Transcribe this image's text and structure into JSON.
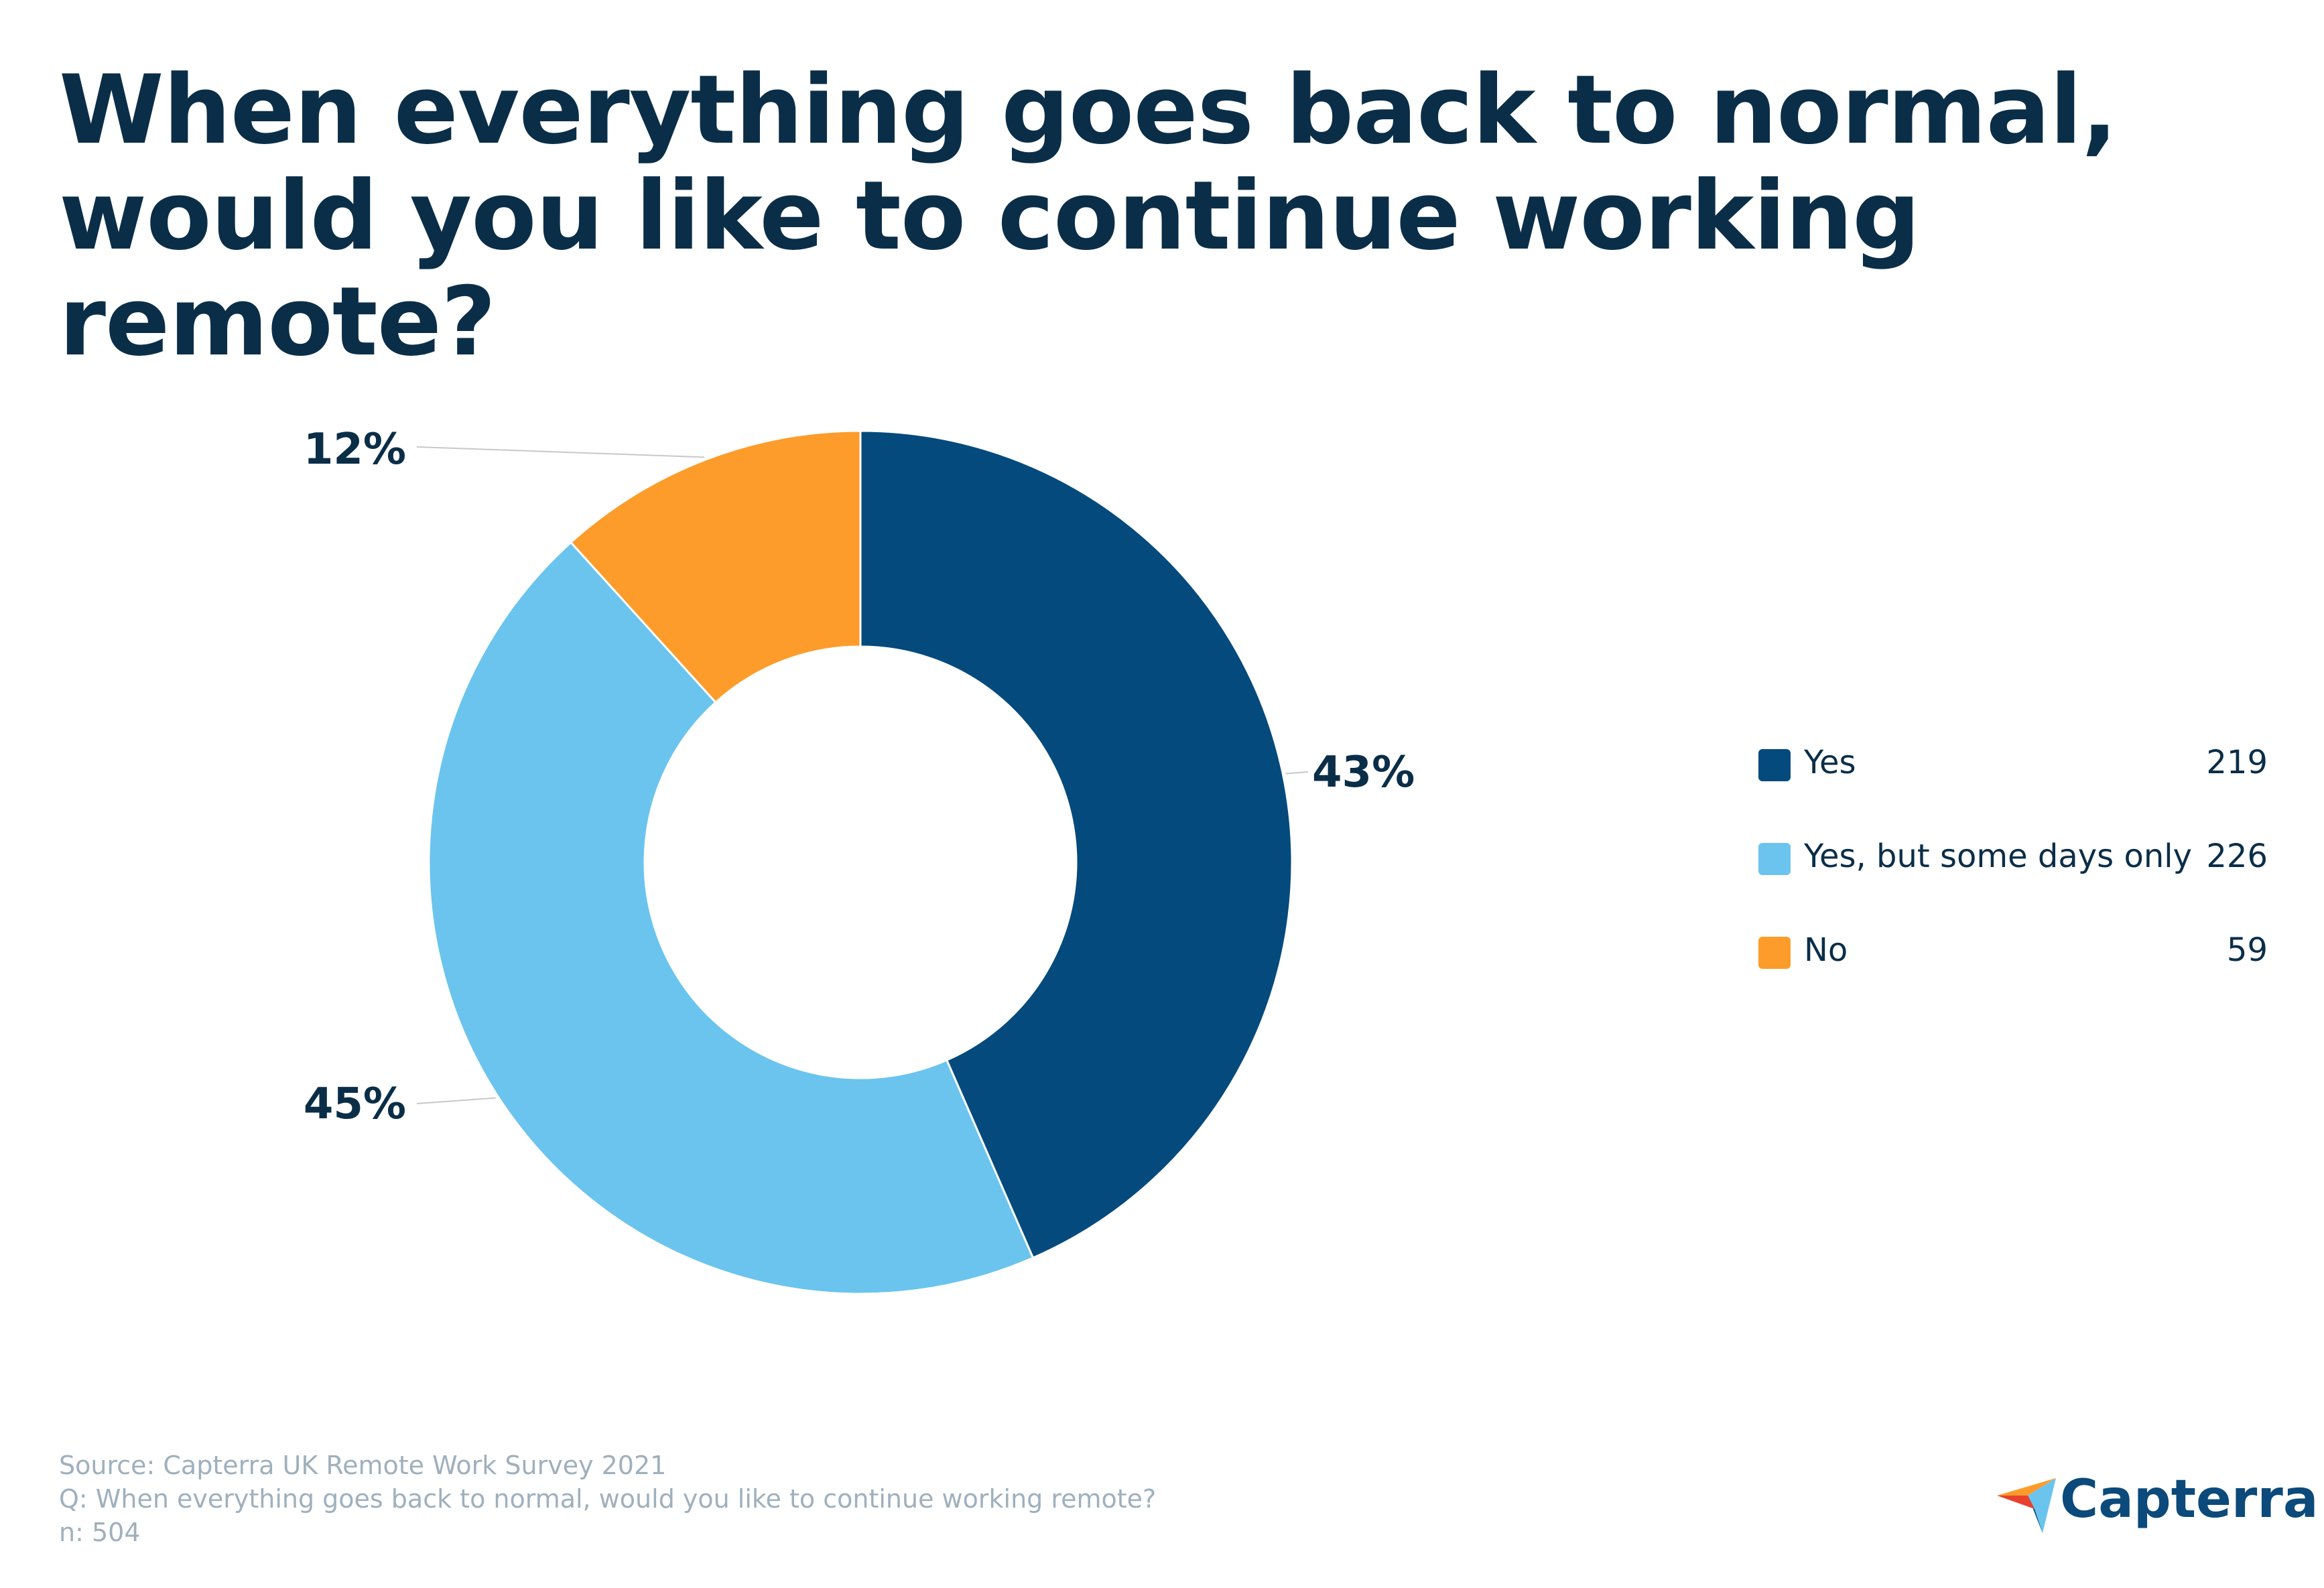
{
  "title": "When everything goes back to normal, would you like to continue working remote?",
  "chart_data": {
    "type": "pie",
    "donut": true,
    "title": "When everything goes back to normal, would you like to continue working remote?",
    "categories": [
      "Yes",
      "Yes, but some days only",
      "No"
    ],
    "values": [
      219,
      226,
      59
    ],
    "percent_labels": [
      "43%",
      "45%",
      "12%"
    ],
    "colors": [
      "#054a7c",
      "#6ac4ee",
      "#fd9c2a"
    ],
    "legend_position": "right",
    "total": 504
  },
  "legend": {
    "items": [
      {
        "label": "Yes",
        "count": "219",
        "color": "#054a7c"
      },
      {
        "label": "Yes, but some days only",
        "count": "226",
        "color": "#6ac4ee"
      },
      {
        "label": "No",
        "count": "59",
        "color": "#fd9c2a"
      }
    ]
  },
  "footer": {
    "source": "Source: Capterra UK Remote Work Survey 2021",
    "question": "Q: When everything goes back to normal, would you like to continue working remote?",
    "n": "n: 504"
  },
  "logo": {
    "text": "Capterra",
    "colors": [
      "#fd9c2a",
      "#6ac4ee",
      "#0b4a7a",
      "#e8412e"
    ]
  }
}
